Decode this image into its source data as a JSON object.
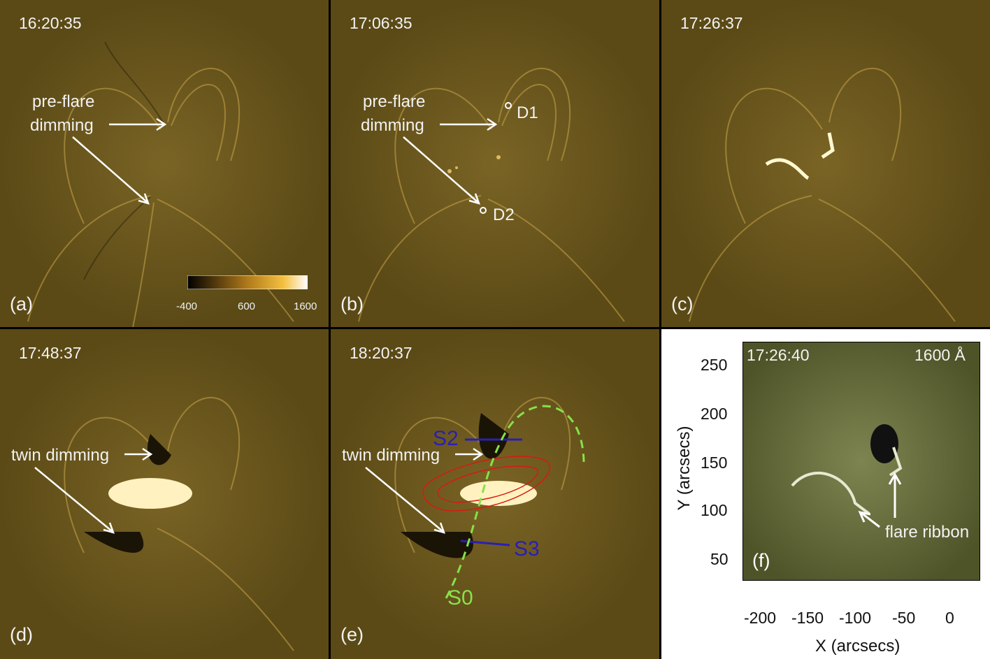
{
  "panels": [
    {
      "id": "a",
      "label": "(a)",
      "time": "16:20:35",
      "annotations": [
        "pre-flare",
        "dimming"
      ]
    },
    {
      "id": "b",
      "label": "(b)",
      "time": "17:06:35",
      "annotations": [
        "pre-flare",
        "dimming"
      ],
      "markers": [
        "D1",
        "D2"
      ]
    },
    {
      "id": "c",
      "label": "(c)",
      "time": "17:26:37"
    },
    {
      "id": "d",
      "label": "(d)",
      "time": "17:48:37",
      "annotations": [
        "twin dimming"
      ]
    },
    {
      "id": "e",
      "label": "(e)",
      "time": "18:20:37",
      "annotations": [
        "twin dimming"
      ],
      "slits": [
        "S2",
        "S3",
        "S0"
      ]
    },
    {
      "id": "f",
      "label": "(f)",
      "time": "17:26:40",
      "wavelength": "1600 Å",
      "annotations": [
        "flare ribbon"
      ]
    }
  ],
  "colorbar": {
    "ticks": [
      "-400",
      "600",
      "1600"
    ]
  },
  "panel_f_axes": {
    "xlabel": "X (arcsecs)",
    "ylabel": "Y (arcsecs)",
    "xticks": [
      "-200",
      "-150",
      "-100",
      "-50",
      "0"
    ],
    "yticks": [
      "250",
      "200",
      "150",
      "100",
      "50"
    ]
  },
  "colors": {
    "background": "#5b4a16",
    "slit_blue": "#2a1fb4",
    "slit_green": "#86e24a",
    "contour_red": "#d81a10",
    "panel_f_bg": "#5d6334"
  }
}
